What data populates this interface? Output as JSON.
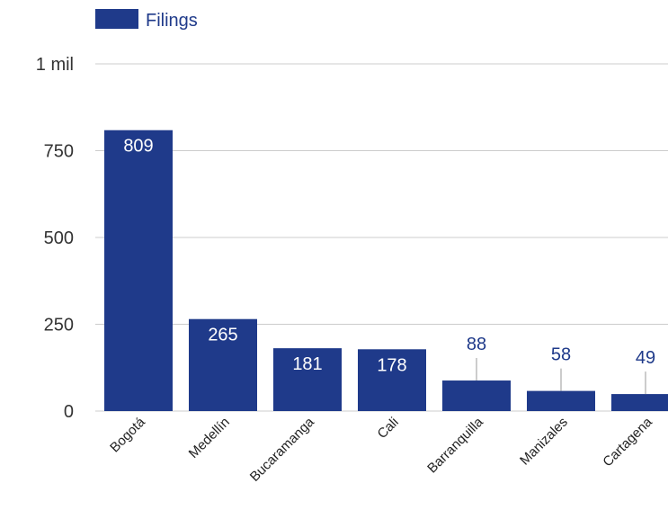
{
  "colors": {
    "bar": "#1f3a8a",
    "grid": "#cccccc",
    "label_inside": "#ffffff",
    "label_outside": "#1f3a8a",
    "leader": "#999999"
  },
  "legend": {
    "label": "Filings"
  },
  "chart_data": {
    "type": "bar",
    "categories": [
      "Bogotá",
      "Medellín",
      "Bucaramanga",
      "Cali",
      "Barranquilla",
      "Manizales",
      "Cartagena"
    ],
    "series": [
      {
        "name": "Filings",
        "values": [
          809,
          265,
          181,
          178,
          88,
          58,
          49
        ]
      }
    ],
    "data_labels": [
      "809",
      "265",
      "181",
      "178",
      "88",
      "58",
      "49"
    ],
    "ylim": [
      0,
      1000
    ],
    "yticks": [
      0,
      250,
      500,
      750,
      1000
    ],
    "ytick_labels": [
      "0",
      "250",
      "500",
      "750",
      "1 mil"
    ],
    "grid": true,
    "legend_position": "top-left"
  }
}
